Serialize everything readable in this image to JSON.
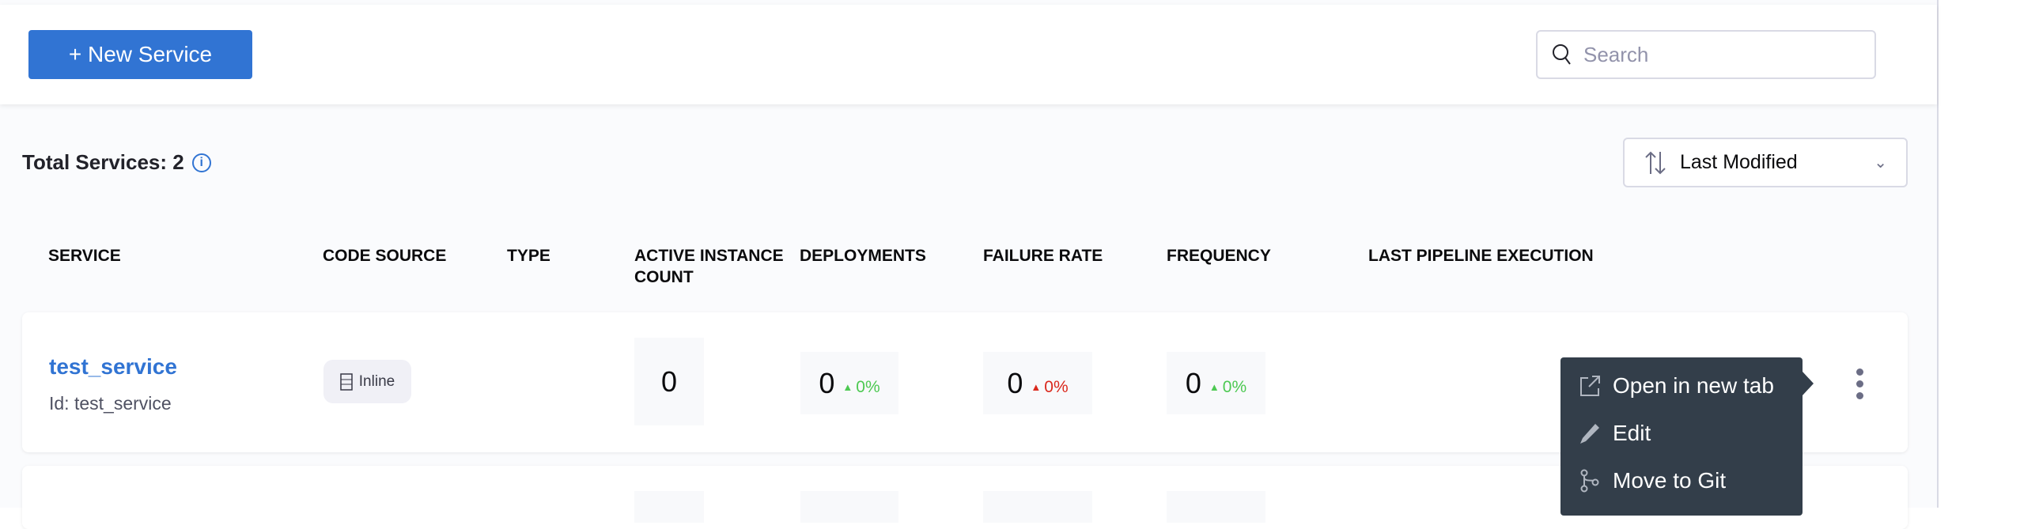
{
  "toolbar": {
    "new_service_label": "+ New Service",
    "search_placeholder": "Search"
  },
  "summary": {
    "total_label": "Total Services: 2",
    "info_icon": "info-icon"
  },
  "sort": {
    "selected": "Last Modified"
  },
  "table": {
    "columns": [
      "SERVICE",
      "CODE SOURCE",
      "TYPE",
      "ACTIVE INSTANCE COUNT",
      "DEPLOYMENTS",
      "FAILURE RATE",
      "FREQUENCY",
      "LAST PIPELINE EXECUTION"
    ],
    "rows": [
      {
        "name": "test_service",
        "id": "Id: test_service",
        "code_source": "Inline",
        "active_instance_count": "0",
        "deployments": {
          "value": "0",
          "trend": "0%",
          "direction": "up",
          "color": "#4dc952"
        },
        "failure_rate": {
          "value": "0",
          "trend": "0%",
          "direction": "up",
          "color": "#da291d"
        },
        "frequency": {
          "value": "0",
          "trend": "0%",
          "direction": "up",
          "color": "#4dc952"
        }
      }
    ]
  },
  "context_menu": {
    "items": [
      {
        "label": "Open in new tab",
        "icon": "open-new-tab-icon"
      },
      {
        "label": "Edit",
        "icon": "pencil-icon"
      },
      {
        "label": "Move to Git",
        "icon": "git-branch-icon"
      }
    ]
  },
  "colors": {
    "accent": "#3174d3",
    "menu_bg": "#333e4a"
  }
}
